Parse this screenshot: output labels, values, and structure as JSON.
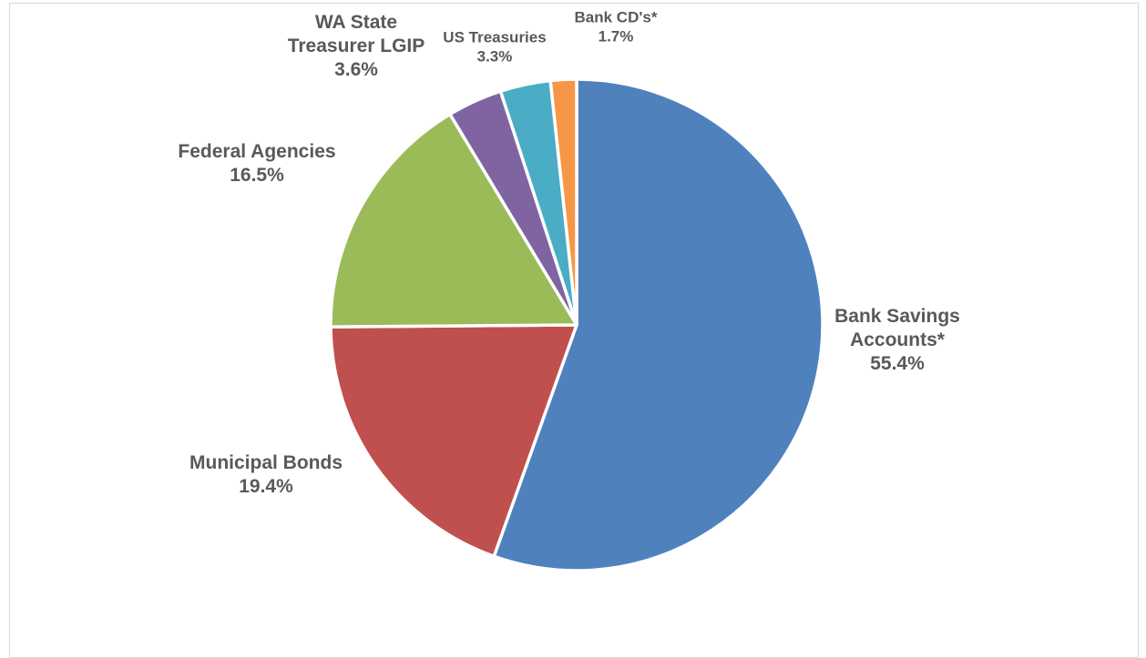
{
  "chart_data": {
    "type": "pie",
    "title": "",
    "categories": [
      "Bank Savings Accounts*",
      "Municipal Bonds",
      "Federal Agencies",
      "WA State Treasurer LGIP",
      "US Treasuries",
      "Bank CD's*"
    ],
    "values": [
      55.4,
      19.4,
      16.5,
      3.6,
      3.3,
      1.7
    ],
    "value_labels": [
      "55.4%",
      "19.4%",
      "16.5%",
      "3.6%",
      "3.3%",
      "1.7%"
    ],
    "label_lines": [
      [
        "Bank Savings",
        "Accounts*"
      ],
      [
        "Municipal Bonds"
      ],
      [
        "Federal Agencies"
      ],
      [
        "WA State",
        "Treasurer LGIP"
      ],
      [
        "US Treasuries"
      ],
      [
        "Bank CD's*"
      ]
    ],
    "colors": [
      "#4f81bd",
      "#c0504d",
      "#9bbb59",
      "#8064a2",
      "#4bacc6",
      "#f79646"
    ],
    "start_angle": "12 o'clock, clockwise",
    "legend": "none"
  }
}
